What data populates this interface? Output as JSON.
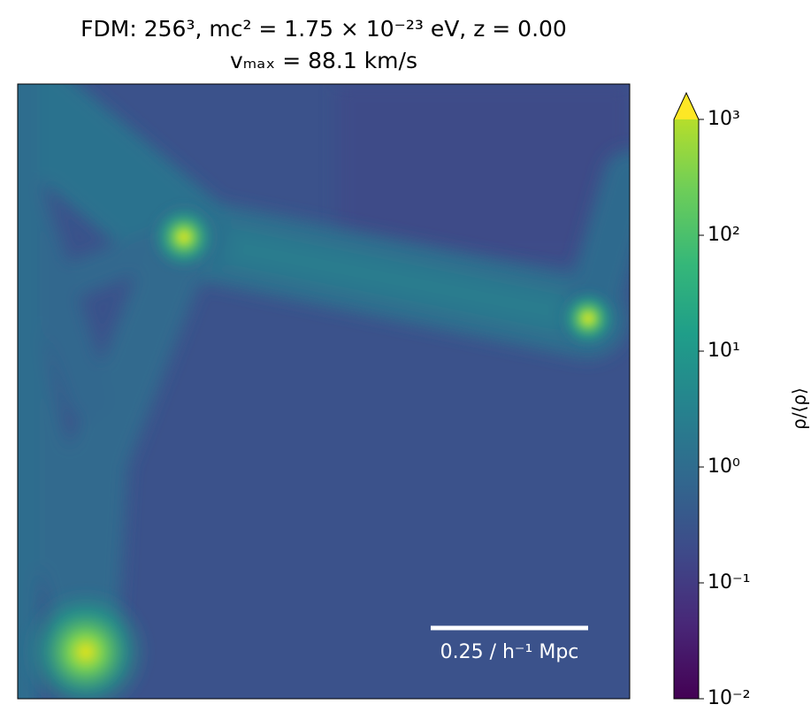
{
  "chart_data": {
    "type": "heatmap",
    "title": "FDM: 256³, mc² = 1.75 × 10⁻²³ eV, z = 0.00",
    "subtitle": "vₘₐₓ = 88.1 km/s",
    "colorbar_label": "ρ/⟨ρ⟩",
    "colorscale": "log",
    "colormap": "viridis",
    "clim": [
      0.01,
      1000
    ],
    "cticks": [
      {
        "value": 1000,
        "label": "10³"
      },
      {
        "value": 100,
        "label": "10²"
      },
      {
        "value": 10,
        "label": "10¹"
      },
      {
        "value": 1,
        "label": "10⁰"
      },
      {
        "value": 0.1,
        "label": "10⁻¹"
      },
      {
        "value": 0.01,
        "label": "10⁻²"
      }
    ],
    "scalebar_label": "0.25 / h⁻¹ Mpc"
  }
}
